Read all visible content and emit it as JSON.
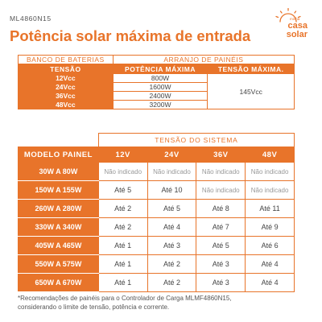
{
  "header": {
    "model_code": "ML4860N15",
    "title": "Potência solar máxima de entrada"
  },
  "logo": {
    "small_text": "minha",
    "line1": "casa",
    "line2": "solar",
    "color": "#e8742a"
  },
  "table1": {
    "caption_left": "BANCO DE BATERIAS",
    "caption_right": "ARRANJO DE PAINÉIS",
    "headers": [
      "TENSÃO",
      "POTÊNCIA MÁXIMA",
      "TENSÃO MÁXIMA."
    ],
    "rows": [
      {
        "voltage": "12Vcc",
        "power": "800W"
      },
      {
        "voltage": "24Vcc",
        "power": "1600W"
      },
      {
        "voltage": "36Vcc",
        "power": "2400W"
      },
      {
        "voltage": "48Vcc",
        "power": "3200W"
      }
    ],
    "max_voltage": "145Vcc"
  },
  "table2": {
    "caption": "TENSÃO DO SISTEMA",
    "headers": [
      "MODELO PAINEL",
      "12V",
      "24V",
      "36V",
      "48V"
    ],
    "rows": [
      {
        "model": "30W A 80W",
        "values": [
          "Não indicado",
          "Não indicado",
          "Não indicado",
          "Não indicado"
        ]
      },
      {
        "model": "150W A 155W",
        "values": [
          "Até 5",
          "Até 10",
          "Não indicado",
          "Não indicado"
        ]
      },
      {
        "model": "260W A 280W",
        "values": [
          "Até 2",
          "Até 5",
          "Até 8",
          "Até 11"
        ]
      },
      {
        "model": "330W A 340W",
        "values": [
          "Até 2",
          "Até 4",
          "Até 7",
          "Até 9"
        ]
      },
      {
        "model": "405W A 465W",
        "values": [
          "Até 1",
          "Até 3",
          "Até 5",
          "Até 6"
        ]
      },
      {
        "model": "550W A 575W",
        "values": [
          "Até 1",
          "Até 2",
          "Até 3",
          "Até 4"
        ]
      },
      {
        "model": "650W A 670W",
        "values": [
          "Até 1",
          "Até 2",
          "Até 3",
          "Até 4"
        ]
      }
    ]
  },
  "footnote": {
    "line1": "*Recomendações de painéis para o Controlador de Carga MLMF4860N15,",
    "line2": "considerando o limite de tensão, potência e corrente."
  },
  "colors": {
    "accent": "#e8742a",
    "not_indicated_text": "#999999"
  }
}
